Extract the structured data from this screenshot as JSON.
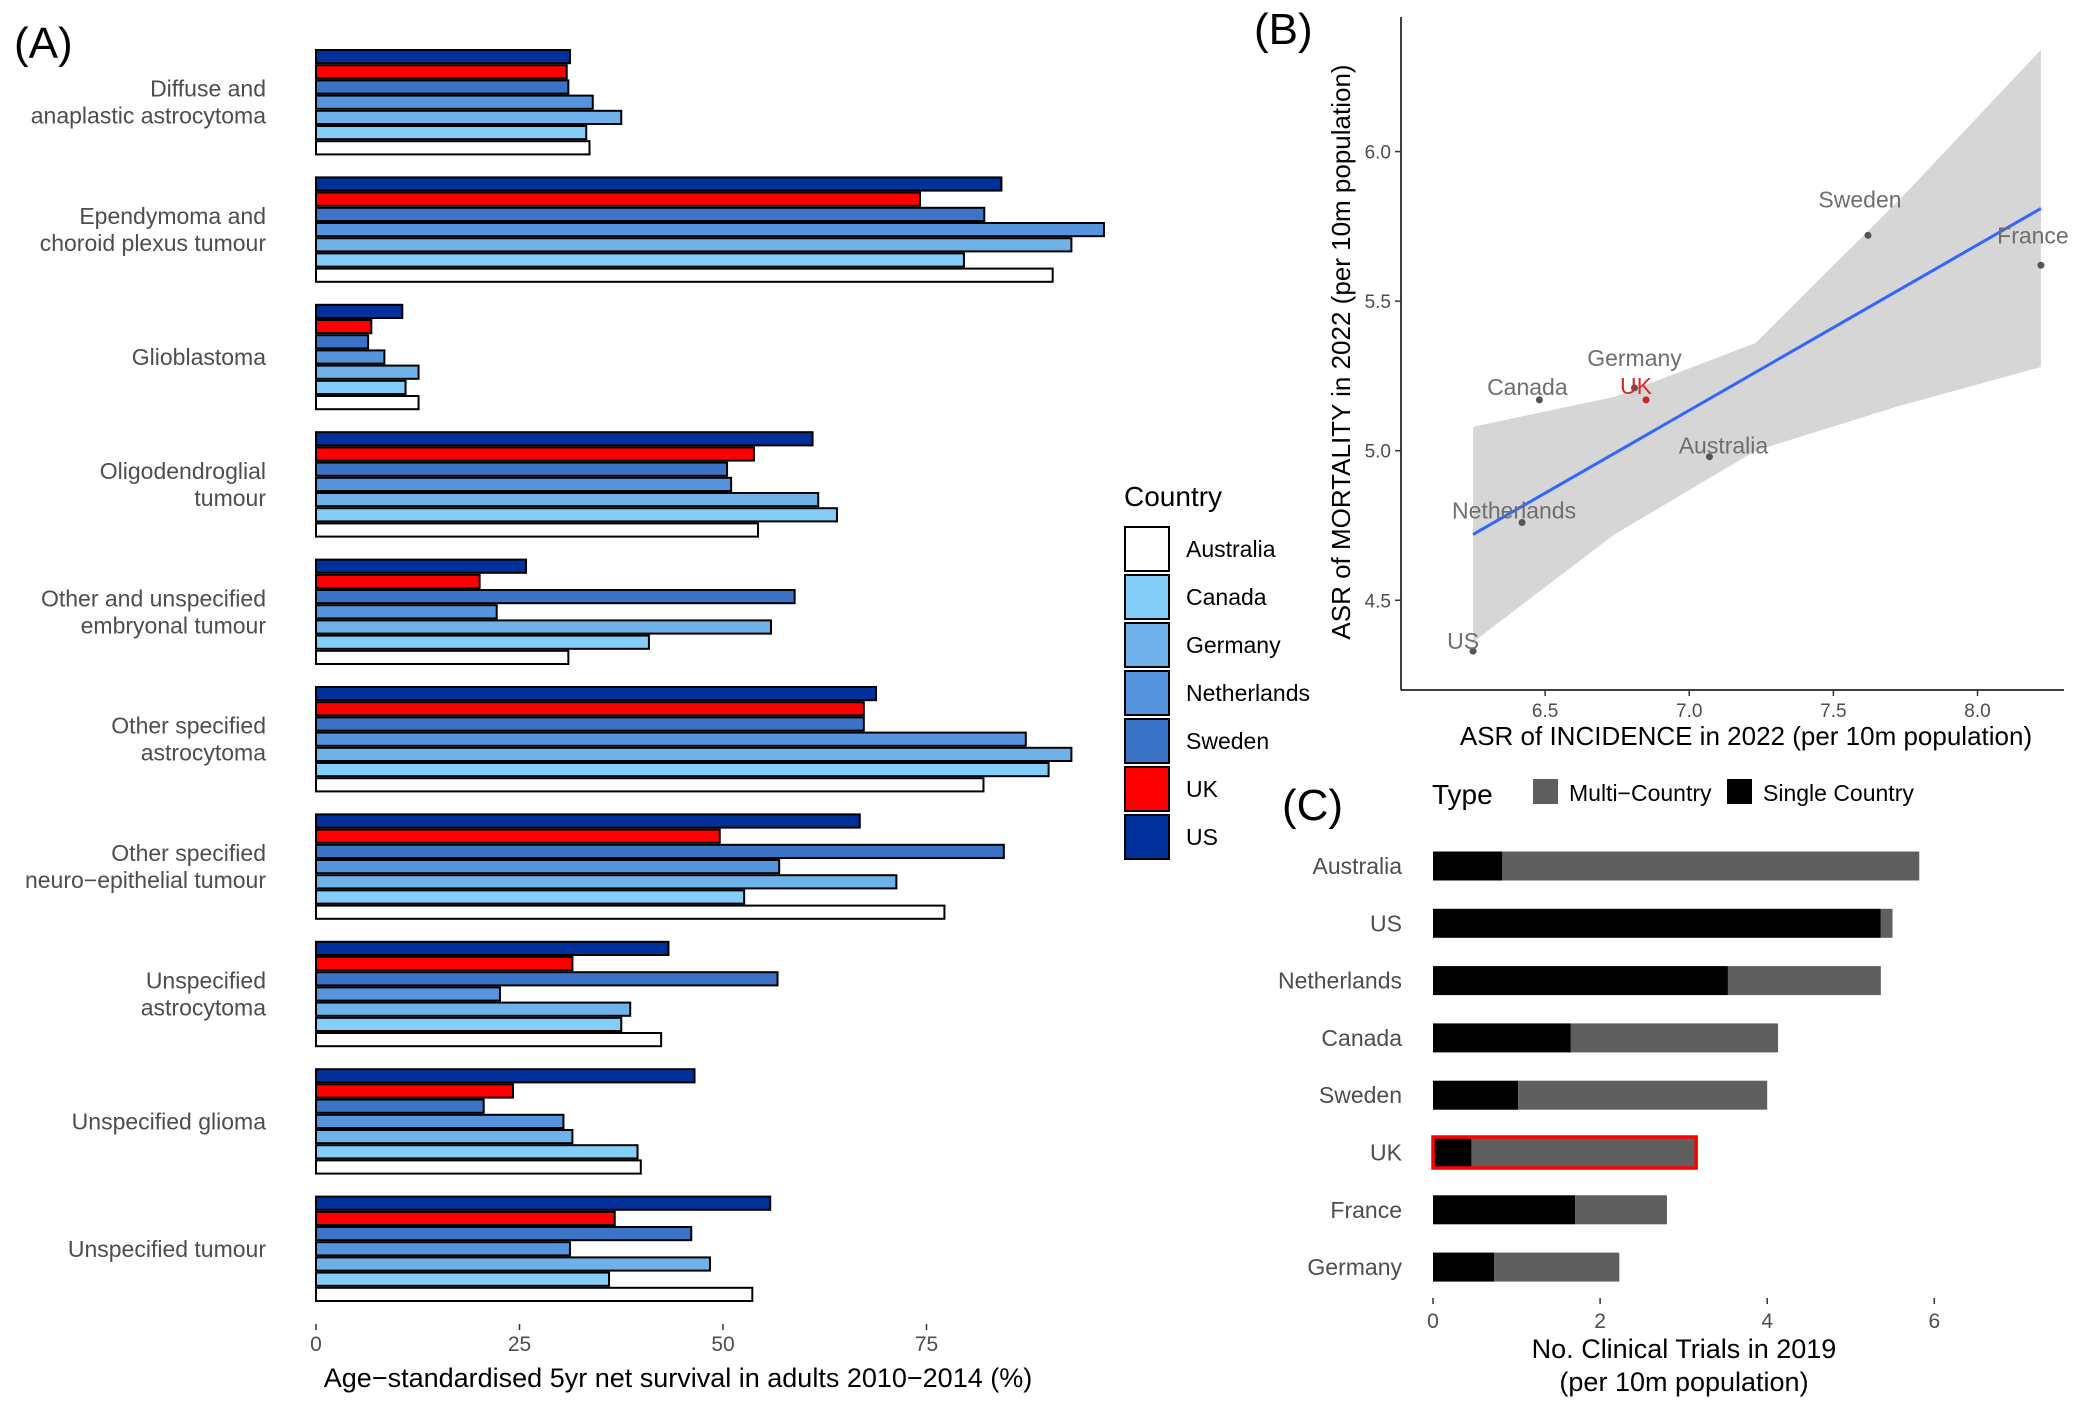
{
  "panels": {
    "a": "(A)",
    "b": "(B)",
    "c": "(C)"
  },
  "legend": {
    "title": "Country",
    "entries": [
      {
        "name": "Australia",
        "color": "#ffffff"
      },
      {
        "name": "Canada",
        "color": "#84cdf8"
      },
      {
        "name": "Germany",
        "color": "#6fb2ea"
      },
      {
        "name": "Netherlands",
        "color": "#5694dd"
      },
      {
        "name": "Sweden",
        "color": "#3b73c7"
      },
      {
        "name": "UK",
        "color": "#ff0000"
      },
      {
        "name": "US",
        "color": "#00309a"
      }
    ]
  },
  "type_legend": {
    "title": "Type",
    "entries": [
      {
        "name": "Multi−Country",
        "color": "#5f5f5f"
      },
      {
        "name": "Single Country",
        "color": "#000000"
      }
    ]
  },
  "chart_data": [
    {
      "type": "bar",
      "orientation": "horizontal",
      "xlabel": "Age−standardised 5yr net survival in adults 2010−2014 (%)",
      "xlim": [
        0,
        100
      ],
      "xticks": [
        "0",
        "25",
        "50",
        "75"
      ],
      "categories": [
        [
          "Diffuse and",
          "anaplastic astrocytoma"
        ],
        [
          "Ependymoma and",
          "choroid plexus tumour"
        ],
        [
          "Glioblastoma"
        ],
        [
          "Oligodendroglial",
          "tumour"
        ],
        [
          "Other and unspecified",
          "embryonal tumour"
        ],
        [
          "Other specified",
          "astrocytoma"
        ],
        [
          "Other specified",
          "neuro−epithelial tumour"
        ],
        [
          "Unspecified",
          "astrocytoma"
        ],
        [
          "Unspecified glioma"
        ],
        [
          "Unspecified tumour"
        ]
      ],
      "series": [
        {
          "name": "US",
          "values": [
            31.2,
            84.2,
            10.6,
            61.0,
            25.8,
            68.8,
            66.8,
            43.3,
            46.5,
            55.8
          ]
        },
        {
          "name": "UK",
          "values": [
            30.8,
            74.2,
            6.8,
            53.8,
            20.1,
            67.3,
            49.6,
            31.5,
            24.2,
            36.7
          ]
        },
        {
          "name": "Sweden",
          "values": [
            31.0,
            82.1,
            6.4,
            50.5,
            58.8,
            67.3,
            84.5,
            56.7,
            20.6,
            46.1
          ]
        },
        {
          "name": "Netherlands",
          "values": [
            34.0,
            96.8,
            8.4,
            51.0,
            22.2,
            87.2,
            56.9,
            22.6,
            30.4,
            31.2
          ]
        },
        {
          "name": "Germany",
          "values": [
            37.5,
            92.8,
            12.6,
            61.7,
            55.9,
            92.8,
            71.3,
            38.6,
            31.5,
            48.4
          ]
        },
        {
          "name": "Canada",
          "values": [
            33.2,
            79.6,
            11.0,
            64.0,
            40.9,
            90.0,
            52.6,
            37.5,
            39.5,
            36.0
          ]
        },
        {
          "name": "Australia",
          "values": [
            33.6,
            90.5,
            12.6,
            54.3,
            31.0,
            82.0,
            77.2,
            42.4,
            39.9,
            53.6
          ]
        }
      ]
    },
    {
      "type": "scatter",
      "xlabel": "ASR of INCIDENCE in 2022 (per 10m population)",
      "ylabel": "ASR of MORTALITY in 2022 (per 10m population)",
      "xlim": [
        6.0,
        8.3
      ],
      "ylim": [
        4.2,
        6.45
      ],
      "xticks": [
        "6.5",
        "7.0",
        "7.5",
        "8.0"
      ],
      "yticks": [
        "4.5",
        "5.0",
        "5.5",
        "6.0"
      ],
      "points": [
        {
          "label": "Sweden",
          "x": 7.62,
          "y": 5.72
        },
        {
          "label": "France",
          "x": 8.22,
          "y": 5.62
        },
        {
          "label": "Germany",
          "x": 6.81,
          "y": 5.21
        },
        {
          "label": "Canada",
          "x": 6.48,
          "y": 5.17
        },
        {
          "label": "UK",
          "x": 6.85,
          "y": 5.17
        },
        {
          "label": "Australia",
          "x": 7.07,
          "y": 4.98
        },
        {
          "label": "Netherlands",
          "x": 6.42,
          "y": 4.76
        },
        {
          "label": "US",
          "x": 6.25,
          "y": 4.33
        }
      ],
      "fit": {
        "x": [
          6.25,
          8.22
        ],
        "y": [
          4.72,
          5.81
        ]
      },
      "ci_band": {
        "x": [
          6.25,
          6.74,
          7.23,
          7.73,
          8.22
        ],
        "lower": [
          4.36,
          4.72,
          5.0,
          5.15,
          5.28
        ],
        "upper": [
          5.08,
          5.18,
          5.36,
          5.84,
          6.34
        ]
      }
    },
    {
      "type": "bar",
      "orientation": "horizontal",
      "stacked": true,
      "xlabel": "No. Clinical Trials in 2019\n(per 10m population)",
      "xlim": [
        0,
        6.2
      ],
      "xticks": [
        "0",
        "2",
        "4",
        "6"
      ],
      "categories": [
        "Australia",
        "US",
        "Netherlands",
        "Canada",
        "Sweden",
        "UK",
        "France",
        "Germany"
      ],
      "highlight": "UK",
      "series": [
        {
          "name": "Single Country",
          "values": [
            0.83,
            5.36,
            3.53,
            1.65,
            1.02,
            0.46,
            1.7,
            0.73
          ]
        },
        {
          "name": "Multi−Country",
          "values": [
            4.99,
            0.14,
            1.83,
            2.48,
            2.98,
            2.69,
            1.1,
            1.5
          ]
        }
      ]
    }
  ]
}
